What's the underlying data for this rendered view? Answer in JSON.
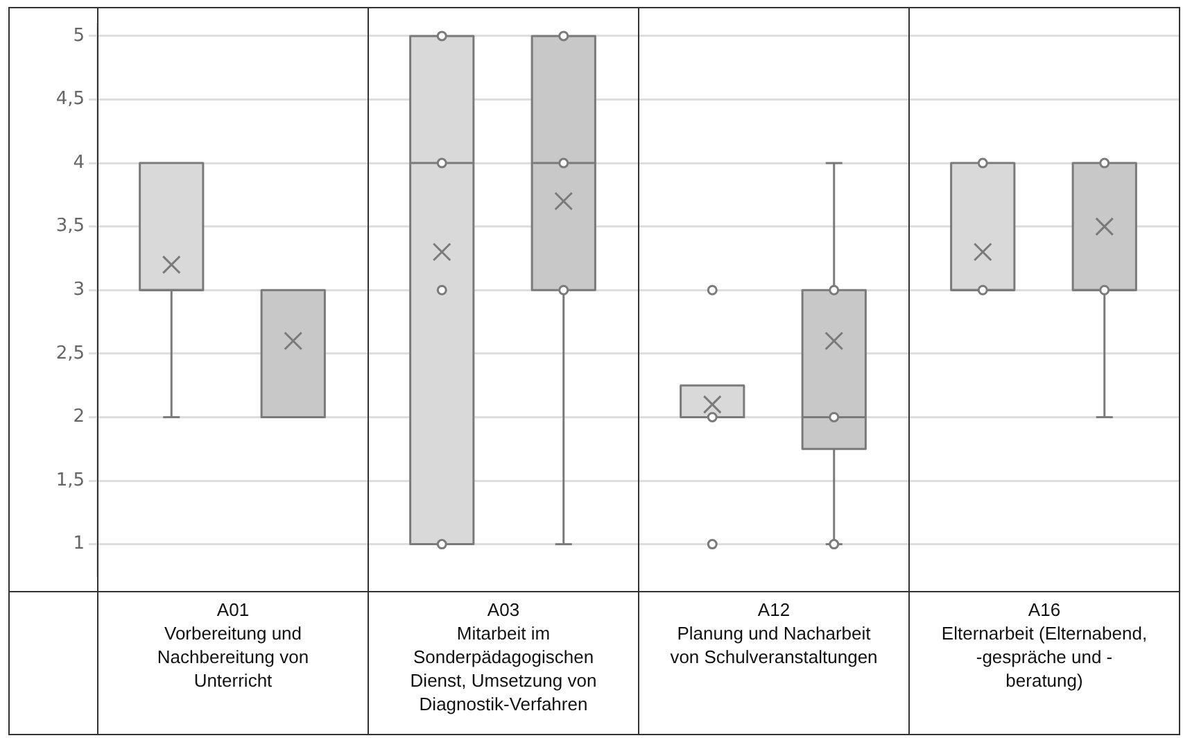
{
  "chart_data": {
    "type": "box",
    "categories": [
      "A01\nVorbereitung und Nachbereitung von Unterricht",
      "A03\nMitarbeit im Sonderpädagogischen Dienst, Umsetzung von Diagnostik-Verfahren",
      "A12\nPlanung und Nacharbeit von Schulveranstaltungen",
      "A16\nElternarbeit (Elternabend, -gespräche und -beratung)"
    ],
    "ylim": [
      0.75,
      5.1
    ],
    "yticks": [
      1,
      {
        "value": 1.5,
        "label": "1,5"
      },
      2,
      {
        "value": 2.5,
        "label": "2,5"
      },
      3,
      {
        "value": 3.5,
        "label": "3,5"
      },
      4,
      {
        "value": 4.5,
        "label": "4,5"
      },
      5
    ],
    "grid": "y",
    "marker": "circle",
    "series": [
      {
        "color": "#d9d9d9",
        "boxes": [
          {
            "low": 2,
            "q1": 3,
            "median": 3,
            "q3": 4,
            "high": 4,
            "mean": 3.2
          },
          {
            "low": 1,
            "q1": 1,
            "median": 4,
            "q3": 5,
            "high": 5,
            "mean": 3.3,
            "outliers": [
              5,
              4,
              3,
              1
            ]
          },
          {
            "low": 2,
            "q1": 2,
            "median": 2,
            "q3": 2.25,
            "high": 2.25,
            "mean": 2.1,
            "outliers": [
              3,
              2,
              1
            ]
          },
          {
            "low": 3,
            "q1": 3,
            "median": 3,
            "q3": 4,
            "high": 4,
            "mean": 3.3,
            "outliers": [
              4,
              3
            ]
          }
        ]
      },
      {
        "color": "#c8c8c8",
        "boxes": [
          {
            "low": 2,
            "q1": 2,
            "median": 2,
            "q3": 3,
            "high": 3,
            "mean": 2.6
          },
          {
            "low": 1,
            "q1": 3,
            "median": 4,
            "q3": 5,
            "high": 5,
            "mean": 3.7,
            "outliers": [
              5,
              4,
              3
            ]
          },
          {
            "low": 1,
            "q1": 1.75,
            "median": 2,
            "q3": 3,
            "high": 4,
            "mean": 2.6,
            "outliers": [
              3,
              2,
              1
            ]
          },
          {
            "low": 2,
            "q1": 3,
            "median": 3,
            "q3": 4,
            "high": 4,
            "mean": 3.5,
            "outliers": [
              4,
              3
            ]
          }
        ]
      }
    ]
  }
}
